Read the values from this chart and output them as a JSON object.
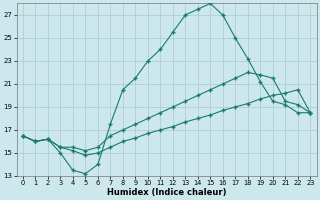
{
  "xlabel": "Humidex (Indice chaleur)",
  "background_color": "#cce8ec",
  "grid_color": "#b0cdd1",
  "line_color": "#1a7a6e",
  "xlim": [
    -0.5,
    23.5
  ],
  "ylim": [
    13,
    28
  ],
  "yticks": [
    13,
    15,
    17,
    19,
    21,
    23,
    25,
    27
  ],
  "xticks": [
    0,
    1,
    2,
    3,
    4,
    5,
    6,
    7,
    8,
    9,
    10,
    11,
    12,
    13,
    14,
    15,
    16,
    17,
    18,
    19,
    20,
    21,
    22,
    23
  ],
  "line1_x": [
    0,
    1,
    2,
    3,
    4,
    5,
    6,
    7,
    8,
    9,
    10,
    11,
    12,
    13,
    14,
    15,
    16,
    17,
    18,
    19,
    20,
    21,
    22,
    23
  ],
  "line1_y": [
    16.5,
    16.0,
    16.2,
    15.0,
    13.5,
    13.2,
    14.0,
    17.5,
    20.5,
    21.5,
    23.0,
    24.0,
    25.5,
    27.0,
    27.5,
    28.0,
    27.0,
    25.0,
    23.2,
    21.2,
    19.5,
    19.2,
    18.5,
    18.5
  ],
  "line2_x": [
    0,
    1,
    2,
    3,
    4,
    5,
    6,
    7,
    8,
    9,
    10,
    11,
    12,
    13,
    14,
    15,
    16,
    17,
    18,
    19,
    20,
    21,
    22,
    23
  ],
  "line2_y": [
    16.5,
    16.0,
    16.2,
    15.5,
    15.5,
    15.2,
    15.5,
    16.5,
    17.0,
    17.5,
    18.0,
    18.5,
    19.0,
    19.5,
    20.0,
    20.5,
    21.0,
    21.5,
    22.0,
    21.8,
    21.5,
    19.5,
    19.2,
    18.5
  ],
  "line3_x": [
    0,
    1,
    2,
    3,
    4,
    5,
    6,
    7,
    8,
    9,
    10,
    11,
    12,
    13,
    14,
    15,
    16,
    17,
    18,
    19,
    20,
    21,
    22,
    23
  ],
  "line3_y": [
    16.5,
    16.0,
    16.2,
    15.5,
    15.2,
    14.8,
    15.0,
    15.5,
    16.0,
    16.3,
    16.7,
    17.0,
    17.3,
    17.7,
    18.0,
    18.3,
    18.7,
    19.0,
    19.3,
    19.7,
    20.0,
    20.2,
    20.5,
    18.5
  ]
}
